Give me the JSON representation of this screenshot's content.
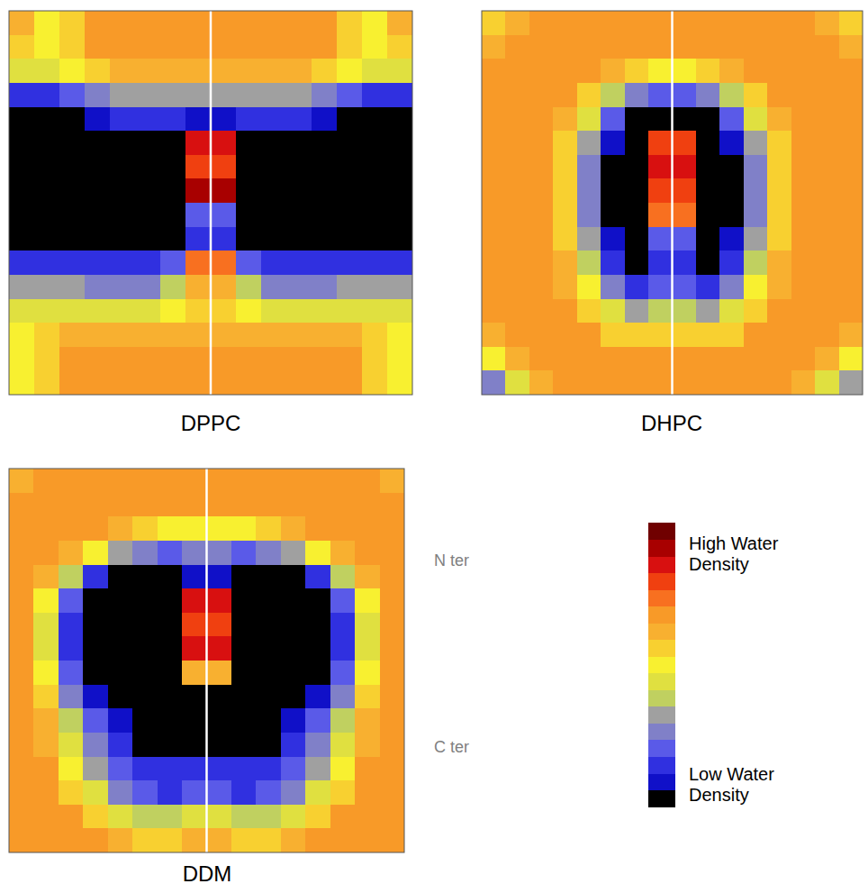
{
  "chart_data": [
    {
      "type": "heatmap",
      "title": "DPPC",
      "cells": [
        [
          10,
          8,
          9,
          11,
          11,
          11,
          11,
          11,
          11,
          11,
          11,
          11,
          11,
          9,
          8,
          10
        ],
        [
          9,
          8,
          9,
          11,
          11,
          11,
          11,
          11,
          11,
          11,
          11,
          11,
          11,
          9,
          8,
          9
        ],
        [
          7,
          7,
          8,
          9,
          10,
          10,
          10,
          10,
          10,
          10,
          10,
          10,
          9,
          8,
          7,
          7
        ],
        [
          2,
          2,
          3,
          4,
          5,
          5,
          5,
          5,
          5,
          5,
          5,
          5,
          4,
          3,
          2,
          2
        ],
        [
          0,
          0,
          0,
          1,
          2,
          2,
          2,
          1,
          1,
          2,
          2,
          2,
          1,
          0,
          0,
          0
        ],
        [
          0,
          0,
          0,
          0,
          0,
          0,
          0,
          14,
          14,
          0,
          0,
          0,
          0,
          0,
          0,
          0
        ],
        [
          0,
          0,
          0,
          0,
          0,
          0,
          0,
          13,
          13,
          0,
          0,
          0,
          0,
          0,
          0,
          0
        ],
        [
          0,
          0,
          0,
          0,
          0,
          0,
          0,
          15,
          15,
          0,
          0,
          0,
          0,
          0,
          0,
          0
        ],
        [
          0,
          0,
          0,
          0,
          0,
          0,
          0,
          3,
          3,
          0,
          0,
          0,
          0,
          0,
          0,
          0
        ],
        [
          0,
          0,
          0,
          0,
          0,
          0,
          0,
          2,
          2,
          0,
          0,
          0,
          0,
          0,
          0,
          0
        ],
        [
          2,
          2,
          2,
          2,
          2,
          2,
          3,
          12,
          12,
          3,
          2,
          2,
          2,
          2,
          2,
          2
        ],
        [
          5,
          5,
          5,
          4,
          4,
          4,
          6,
          10,
          10,
          6,
          4,
          4,
          4,
          5,
          5,
          5
        ],
        [
          7,
          7,
          7,
          7,
          7,
          7,
          8,
          9,
          9,
          8,
          7,
          7,
          7,
          7,
          7,
          7
        ],
        [
          8,
          9,
          10,
          10,
          10,
          10,
          10,
          10,
          10,
          10,
          10,
          10,
          10,
          10,
          9,
          8
        ],
        [
          8,
          9,
          11,
          11,
          11,
          11,
          11,
          11,
          11,
          11,
          11,
          11,
          11,
          11,
          9,
          8
        ],
        [
          8,
          9,
          11,
          11,
          11,
          11,
          11,
          11,
          11,
          11,
          11,
          11,
          11,
          11,
          9,
          8
        ]
      ]
    },
    {
      "type": "heatmap",
      "title": "DHPC",
      "cells": [
        [
          9,
          10,
          11,
          11,
          11,
          11,
          11,
          11,
          11,
          11,
          11,
          11,
          11,
          11,
          10,
          9
        ],
        [
          10,
          11,
          11,
          11,
          11,
          11,
          11,
          11,
          11,
          11,
          11,
          11,
          11,
          11,
          11,
          10
        ],
        [
          11,
          11,
          11,
          11,
          11,
          10,
          9,
          8,
          8,
          9,
          10,
          11,
          11,
          11,
          11,
          11
        ],
        [
          11,
          11,
          11,
          11,
          9,
          6,
          4,
          3,
          3,
          4,
          6,
          9,
          11,
          11,
          11,
          11
        ],
        [
          11,
          11,
          11,
          10,
          7,
          3,
          0,
          0,
          0,
          0,
          3,
          7,
          10,
          11,
          11,
          11
        ],
        [
          11,
          11,
          11,
          9,
          5,
          1,
          0,
          13,
          13,
          0,
          1,
          5,
          9,
          11,
          11,
          11
        ],
        [
          11,
          11,
          11,
          9,
          4,
          0,
          0,
          14,
          14,
          0,
          0,
          4,
          9,
          11,
          11,
          11
        ],
        [
          11,
          11,
          11,
          9,
          4,
          0,
          0,
          13,
          13,
          0,
          0,
          4,
          9,
          11,
          11,
          11
        ],
        [
          11,
          11,
          11,
          9,
          4,
          0,
          0,
          12,
          12,
          0,
          0,
          4,
          9,
          11,
          11,
          11
        ],
        [
          11,
          11,
          11,
          9,
          5,
          1,
          0,
          3,
          3,
          0,
          1,
          5,
          9,
          11,
          11,
          11
        ],
        [
          11,
          11,
          11,
          10,
          6,
          2,
          0,
          2,
          2,
          0,
          2,
          6,
          10,
          11,
          11,
          11
        ],
        [
          11,
          11,
          11,
          10,
          8,
          4,
          2,
          3,
          3,
          2,
          4,
          8,
          10,
          11,
          11,
          11
        ],
        [
          11,
          11,
          11,
          11,
          9,
          7,
          5,
          6,
          6,
          5,
          7,
          9,
          11,
          11,
          11,
          11
        ],
        [
          10,
          11,
          11,
          11,
          11,
          9,
          9,
          9,
          9,
          9,
          9,
          11,
          11,
          11,
          11,
          10
        ],
        [
          8,
          10,
          11,
          11,
          11,
          11,
          11,
          11,
          11,
          11,
          11,
          11,
          11,
          11,
          10,
          8
        ],
        [
          4,
          7,
          10,
          11,
          11,
          11,
          11,
          11,
          11,
          11,
          11,
          11,
          11,
          10,
          7,
          5
        ]
      ]
    },
    {
      "type": "heatmap",
      "title": "DDM",
      "cells": [
        [
          10,
          11,
          11,
          11,
          11,
          11,
          11,
          11,
          11,
          11,
          11,
          11,
          11,
          11,
          11,
          10
        ],
        [
          11,
          11,
          11,
          11,
          11,
          11,
          11,
          11,
          11,
          11,
          11,
          11,
          11,
          11,
          11,
          11
        ],
        [
          11,
          11,
          11,
          11,
          10,
          9,
          8,
          8,
          8,
          8,
          9,
          10,
          11,
          11,
          11,
          11
        ],
        [
          11,
          11,
          10,
          8,
          5,
          4,
          3,
          4,
          4,
          3,
          4,
          5,
          8,
          10,
          11,
          11
        ],
        [
          11,
          10,
          6,
          2,
          0,
          0,
          0,
          1,
          1,
          0,
          0,
          0,
          2,
          6,
          10,
          11
        ],
        [
          11,
          8,
          3,
          0,
          0,
          0,
          0,
          14,
          14,
          0,
          0,
          0,
          0,
          3,
          8,
          11
        ],
        [
          11,
          7,
          2,
          0,
          0,
          0,
          0,
          13,
          13,
          0,
          0,
          0,
          0,
          2,
          7,
          11
        ],
        [
          11,
          7,
          2,
          0,
          0,
          0,
          0,
          14,
          14,
          0,
          0,
          0,
          0,
          2,
          7,
          11
        ],
        [
          11,
          8,
          3,
          0,
          0,
          0,
          0,
          10,
          10,
          0,
          0,
          0,
          0,
          3,
          8,
          11
        ],
        [
          11,
          9,
          4,
          1,
          0,
          0,
          0,
          0,
          0,
          0,
          0,
          0,
          1,
          4,
          9,
          11
        ],
        [
          11,
          10,
          6,
          3,
          1,
          0,
          0,
          0,
          0,
          0,
          0,
          1,
          3,
          6,
          10,
          11
        ],
        [
          11,
          10,
          7,
          4,
          2,
          0,
          0,
          0,
          0,
          0,
          0,
          2,
          4,
          7,
          10,
          11
        ],
        [
          11,
          11,
          8,
          5,
          3,
          2,
          2,
          2,
          2,
          2,
          2,
          3,
          5,
          8,
          11,
          11
        ],
        [
          11,
          11,
          9,
          7,
          4,
          3,
          2,
          3,
          3,
          2,
          3,
          4,
          7,
          9,
          11,
          11
        ],
        [
          11,
          11,
          11,
          9,
          7,
          6,
          6,
          7,
          7,
          6,
          6,
          7,
          9,
          11,
          11,
          11
        ],
        [
          11,
          11,
          11,
          11,
          10,
          9,
          9,
          10,
          10,
          9,
          9,
          10,
          11,
          11,
          11,
          11
        ]
      ]
    }
  ],
  "color_bar": {
    "range": [
      0,
      16
    ],
    "colors": [
      "#000000",
      "#1010c8",
      "#3030e0",
      "#5a5ae8",
      "#8080c8",
      "#a0a0a0",
      "#c0d060",
      "#e0e040",
      "#f8f030",
      "#f8d030",
      "#f8b030",
      "#f89a28",
      "#f87020",
      "#f04010",
      "#d81010",
      "#a80000",
      "#700000"
    ],
    "high_label": "High Water Density",
    "low_label": "Low Water Density"
  },
  "annotations": {
    "n_ter": "N ter",
    "c_ter": "C ter"
  }
}
